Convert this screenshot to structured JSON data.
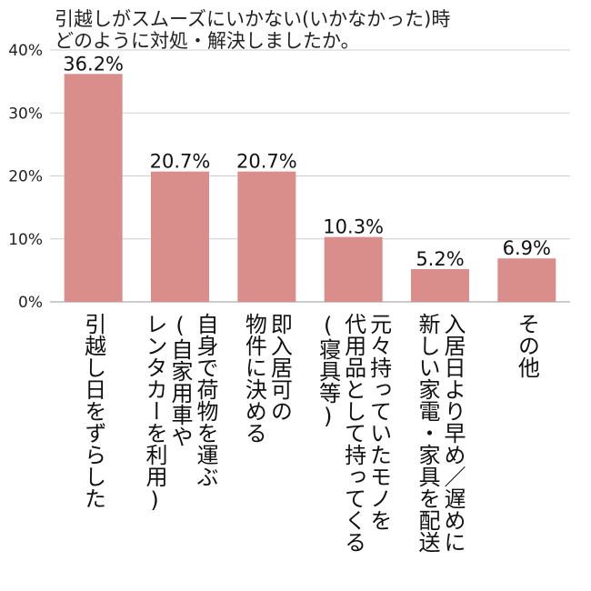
{
  "chart_data": {
    "type": "bar",
    "title_lines": [
      "引越しがスムーズにいかない(いかなかった)時",
      "どのように対処・解決しましたか。"
    ],
    "categories": [
      [
        "引越し日をずらした"
      ],
      [
        "自身で荷物を運ぶ",
        "(自家用車や",
        "レンタカーを利用)"
      ],
      [
        "即入居可の",
        "物件に決める"
      ],
      [
        "元々持っていたモノを",
        "代用品として持ってくる",
        "(寝具等)"
      ],
      [
        "入居日より早め／遅めに",
        "新しい家電・家具を配送"
      ],
      [
        "その他"
      ]
    ],
    "values": [
      36.2,
      20.7,
      20.7,
      10.3,
      5.2,
      6.9
    ],
    "value_labels": [
      "36.2%",
      "20.7%",
      "20.7%",
      "10.3%",
      "5.2%",
      "6.9%"
    ],
    "yticks": [
      "0%",
      "10%",
      "20%",
      "30%",
      "40%"
    ],
    "ylim": [
      0,
      40
    ],
    "grid": true,
    "bar_color": "#d98e8b"
  }
}
